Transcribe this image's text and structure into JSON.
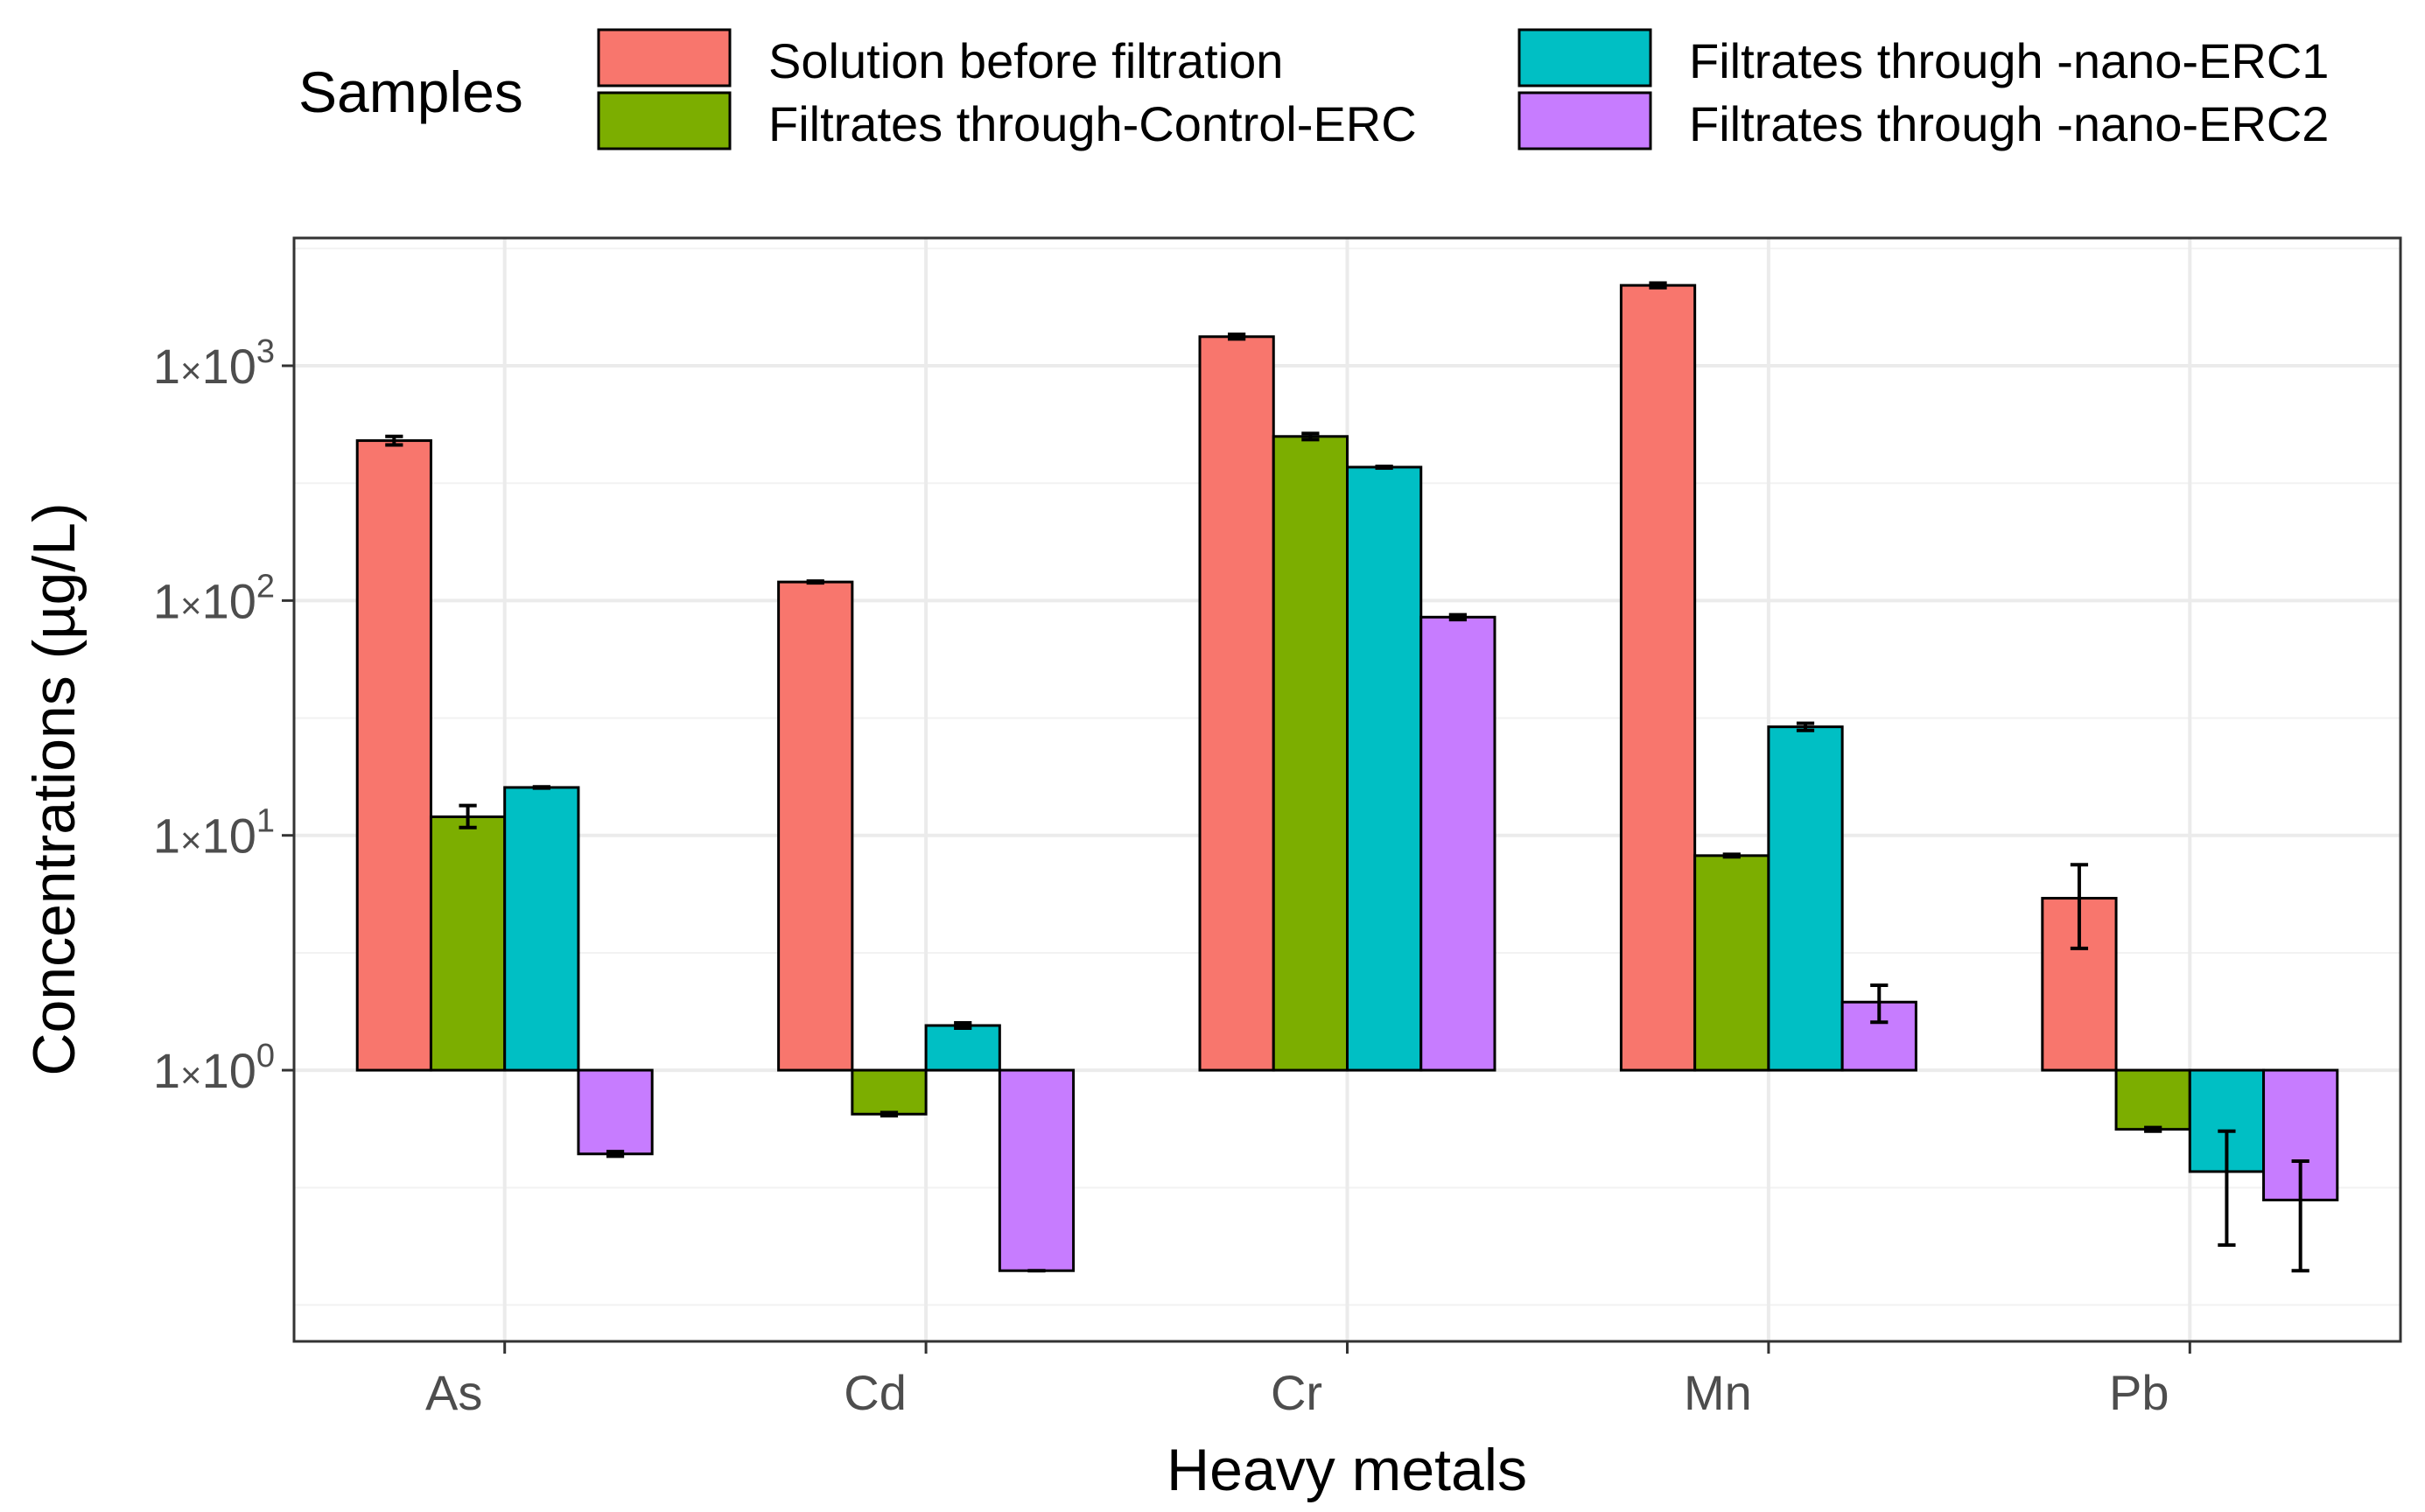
{
  "chart_data": {
    "type": "bar",
    "xlabel": "Heavy metals",
    "ylabel": "Concentrations (µg/L)",
    "y_scale": "log10",
    "bar_baseline": 1,
    "ylim": [
      0.07,
      3500
    ],
    "y_ticks": [
      {
        "value": 1,
        "base": "1",
        "times": "×",
        "mant": "10",
        "exp": "0"
      },
      {
        "value": 10,
        "base": "1",
        "times": "×",
        "mant": "10",
        "exp": "1"
      },
      {
        "value": 100,
        "base": "1",
        "times": "×",
        "mant": "10",
        "exp": "2"
      },
      {
        "value": 1000,
        "base": "1",
        "times": "×",
        "mant": "10",
        "exp": "3"
      }
    ],
    "y_minor_gridlines": [
      0.1,
      0.316,
      3.16,
      31.6,
      316,
      3162
    ],
    "categories": [
      "As",
      "Cd",
      "Cr",
      "Mn",
      "Pb"
    ],
    "legend": {
      "title": "Samples",
      "position": "top"
    },
    "series": [
      {
        "name": "Solution before filtration",
        "color": "#F8766D",
        "values": [
          480,
          120,
          1330,
          2200,
          5.4
        ],
        "err_low": [
          460,
          119,
          1300,
          2150,
          3.3
        ],
        "err_high": [
          500,
          121,
          1360,
          2250,
          7.5
        ]
      },
      {
        "name": "Filtrates through-Control-ERC",
        "color": "#7CAE00",
        "values": [
          12,
          0.65,
          500,
          8.2,
          0.56
        ],
        "err_low": [
          10.8,
          0.64,
          485,
          8.1,
          0.55
        ],
        "err_high": [
          13.4,
          0.66,
          515,
          8.3,
          0.57
        ]
      },
      {
        "name": "Filtrates through -nano-ERC1",
        "color": "#00BFC4",
        "values": [
          16,
          1.55,
          370,
          29,
          0.37
        ],
        "err_low": [
          15.9,
          1.51,
          367,
          28,
          0.18
        ],
        "err_high": [
          16.1,
          1.59,
          373,
          30,
          0.55
        ]
      },
      {
        "name": "Filtrates through -nano-ERC2",
        "color": "#C77CFF",
        "values": [
          0.44,
          0.14,
          85,
          1.95,
          0.28
        ],
        "err_low": [
          0.43,
          0.14,
          83,
          1.6,
          0.14
        ],
        "err_high": [
          0.45,
          0.14,
          87,
          2.3,
          0.41
        ]
      }
    ]
  }
}
